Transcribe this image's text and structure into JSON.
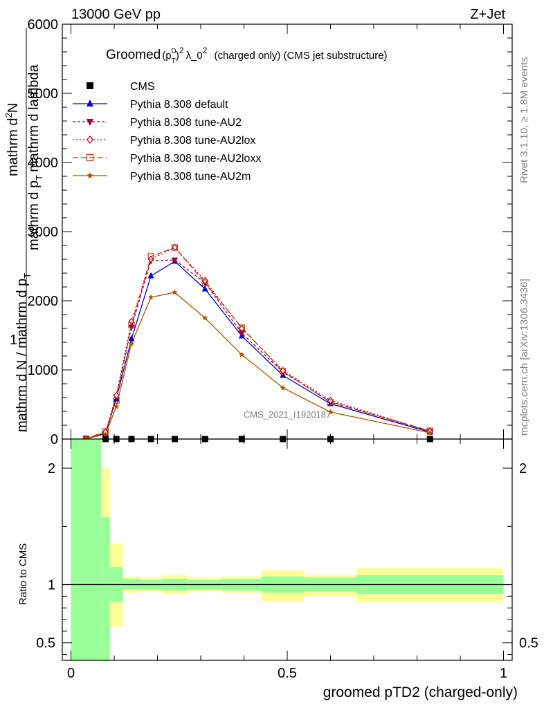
{
  "header": {
    "energy_label": "13000 GeV pp",
    "process_label": "Z+Jet"
  },
  "side": {
    "rivet_label": "Rivet 3.1.10, ≥ 1.8M events",
    "mcplots_label": "mcplots.cern.ch [arXiv:1306.3436]"
  },
  "chart_data": [
    {
      "type": "line",
      "title_main": "Groomed",
      "title_sym": "(p",
      "title_sup_d": "D",
      "title_sub_t": "T",
      "title_close": ")",
      "title_sup_2": "2",
      "title_lambda": "λ_0",
      "title_sup_2b": "2",
      "title_rest": "(charged only) (CMS jet substructure)",
      "ylabel_top_num": "mathrm d",
      "ylabel_top_sup": "2",
      "ylabel_top_n": "N",
      "ylabel_top_den": "mathrm d p",
      "ylabel_top_den_sub": "T",
      "ylabel_top_den2": "mathrm d lambda",
      "ylabel_one": "1",
      "ylabel_bottom": "mathrm d N / mathrm d p",
      "ylabel_bottom_sub": "T",
      "watermark": "CMS_2021_I1920187",
      "xlim": [
        -0.02,
        1.02
      ],
      "ylim": [
        0,
        6000
      ],
      "yticks": [
        0,
        1000,
        2000,
        3000,
        4000,
        5000,
        6000
      ],
      "ytick_labels": [
        "0",
        "1000",
        "2000",
        "3000",
        "4000",
        "5000",
        "6000"
      ],
      "legend_position": "top-left",
      "x": [
        0.035,
        0.08,
        0.105,
        0.14,
        0.185,
        0.24,
        0.31,
        0.395,
        0.49,
        0.6,
        0.83
      ],
      "series": [
        {
          "name": "CMS",
          "color": "#000000",
          "marker": "square",
          "dash": "none",
          "values": [
            0,
            0,
            0,
            0,
            0,
            0,
            0,
            0,
            0,
            0,
            0
          ]
        },
        {
          "name": "Pythia 8.308 default",
          "color": "#0000cc",
          "marker": "triangle-up",
          "dash": "none",
          "values": [
            5,
            80,
            580,
            1450,
            2360,
            2570,
            2170,
            1490,
            920,
            510,
            100
          ]
        },
        {
          "name": "Pythia 8.308 tune-AU2",
          "color": "#990033",
          "marker": "triangle-down",
          "dash": "4,3",
          "values": [
            5,
            90,
            610,
            1620,
            2580,
            2590,
            2260,
            1530,
            970,
            540,
            110
          ]
        },
        {
          "name": "Pythia 8.308 tune-AU2lox",
          "color": "#aa0022",
          "marker": "diamond",
          "dash": "2,3",
          "values": [
            5,
            100,
            630,
            1700,
            2600,
            2770,
            2290,
            1600,
            990,
            560,
            110
          ]
        },
        {
          "name": "Pythia 8.308 tune-AU2loxx",
          "color": "#cc3311",
          "marker": "square-open",
          "dash": "8,4",
          "values": [
            5,
            110,
            560,
            1650,
            2640,
            2770,
            2260,
            1610,
            980,
            530,
            120
          ]
        },
        {
          "name": "Pythia 8.308 tune-AU2m",
          "color": "#aa5500",
          "marker": "star",
          "dash": "none",
          "values": [
            5,
            70,
            470,
            1380,
            2050,
            2120,
            1750,
            1220,
            740,
            390,
            90
          ]
        }
      ]
    },
    {
      "type": "area",
      "ylabel": "Ratio to CMS",
      "xlabel": "groomed pTD2 (charged-only)",
      "xlim": [
        -0.02,
        1.02
      ],
      "ylim": [
        0.35,
        2.25
      ],
      "yticks": [
        0.5,
        1,
        2
      ],
      "ytick_labels": [
        "0.5",
        "1",
        "2"
      ],
      "xticks": [
        0,
        0.5,
        1
      ],
      "xtick_labels": [
        "0",
        "0.5",
        "1"
      ],
      "reference_line": 1,
      "bands": [
        {
          "x0": 0.0,
          "x1": 0.07,
          "green": [
            0.35,
            2.25
          ],
          "yellow": [
            0.35,
            2.25
          ]
        },
        {
          "x0": 0.07,
          "x1": 0.09,
          "green": [
            0.35,
            1.58
          ],
          "yellow": [
            0.35,
            2.0
          ]
        },
        {
          "x0": 0.09,
          "x1": 0.12,
          "green": [
            0.85,
            1.15
          ],
          "yellow": [
            0.64,
            1.35
          ]
        },
        {
          "x0": 0.12,
          "x1": 0.16,
          "green": [
            0.96,
            1.05
          ],
          "yellow": [
            0.93,
            1.07
          ]
        },
        {
          "x0": 0.16,
          "x1": 0.21,
          "green": [
            0.96,
            1.04
          ],
          "yellow": [
            0.94,
            1.06
          ]
        },
        {
          "x0": 0.21,
          "x1": 0.27,
          "green": [
            0.95,
            1.05
          ],
          "yellow": [
            0.92,
            1.08
          ]
        },
        {
          "x0": 0.27,
          "x1": 0.35,
          "green": [
            0.96,
            1.04
          ],
          "yellow": [
            0.94,
            1.06
          ]
        },
        {
          "x0": 0.35,
          "x1": 0.44,
          "green": [
            0.95,
            1.05
          ],
          "yellow": [
            0.93,
            1.07
          ]
        },
        {
          "x0": 0.44,
          "x1": 0.54,
          "green": [
            0.93,
            1.07
          ],
          "yellow": [
            0.86,
            1.12
          ]
        },
        {
          "x0": 0.54,
          "x1": 0.66,
          "green": [
            0.94,
            1.06
          ],
          "yellow": [
            0.9,
            1.08
          ]
        },
        {
          "x0": 0.66,
          "x1": 1.0,
          "green": [
            0.92,
            1.08
          ],
          "yellow": [
            0.85,
            1.14
          ]
        }
      ]
    }
  ]
}
